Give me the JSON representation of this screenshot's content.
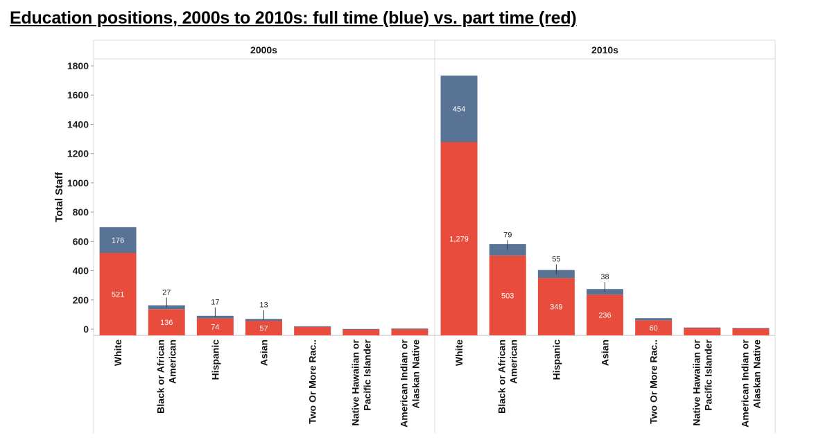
{
  "page": {
    "title": "Education positions, 2000s to 2010s: full time (blue) vs. part time (red)"
  },
  "chart_data": {
    "type": "bar",
    "stacked": true,
    "ylabel": "Total Staff",
    "ylim": [
      0,
      1800
    ],
    "yticks": [
      0,
      200,
      400,
      600,
      800,
      1000,
      1200,
      1400,
      1600,
      1800
    ],
    "colors": {
      "Part time": "#e84c3d",
      "Full time": "#587394"
    },
    "categories": [
      "White",
      "Black or African American",
      "Hispanic",
      "Asian",
      "Two Or More Rac..",
      "Native Hawaiian or Pacific Islander",
      "American Indian or Alaskan Native"
    ],
    "category_lines": [
      [
        "White"
      ],
      [
        "Black or African",
        "American"
      ],
      [
        "Hispanic"
      ],
      [
        "Asian"
      ],
      [
        "Two Or More Rac.."
      ],
      [
        "Native Hawaiian or",
        "Pacific Islander"
      ],
      [
        "American Indian or",
        "Alaskan Native"
      ]
    ],
    "panels": [
      {
        "title": "2000s",
        "series": [
          {
            "name": "Part time",
            "values": [
              521,
              136,
              74,
              57,
              15,
              0,
              2
            ],
            "labels": [
              "521",
              "136",
              "74",
              "57",
              "",
              "",
              ""
            ]
          },
          {
            "name": "Full time",
            "values": [
              176,
              27,
              17,
              13,
              5,
              1,
              2
            ],
            "labels": [
              "176",
              "27",
              "17",
              "13",
              "",
              "",
              ""
            ]
          }
        ]
      },
      {
        "title": "2010s",
        "series": [
          {
            "name": "Part time",
            "values": [
              1279,
              503,
              349,
              236,
              60,
              9,
              5
            ],
            "labels": [
              "1,279",
              "503",
              "349",
              "236",
              "60",
              "",
              ""
            ]
          },
          {
            "name": "Full time",
            "values": [
              454,
              79,
              55,
              38,
              15,
              2,
              3
            ],
            "labels": [
              "454",
              "79",
              "55",
              "38",
              "",
              "",
              ""
            ]
          }
        ]
      }
    ]
  }
}
